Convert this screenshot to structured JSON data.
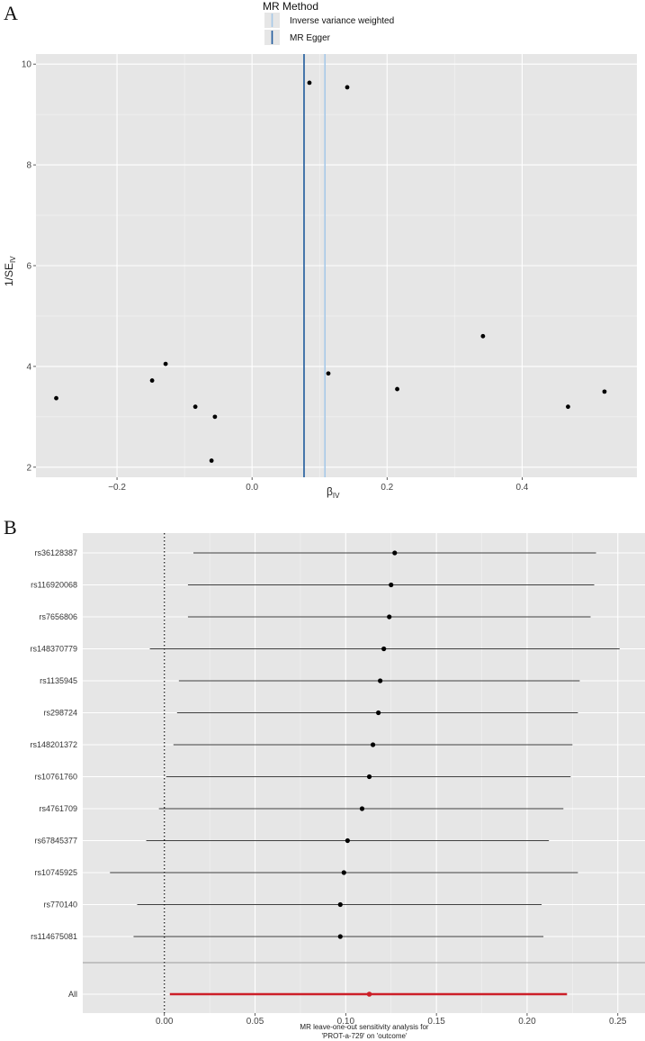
{
  "panel_a": {
    "letter": "A",
    "legend": {
      "title": "MR Method",
      "items": [
        {
          "label": "Inverse variance weighted",
          "color": "#a6c8e8"
        },
        {
          "label": "MR Egger",
          "color": "#1f5a9c"
        }
      ]
    },
    "chart_data": {
      "type": "scatter",
      "xlabel_base": "β",
      "xlabel_sub": "IV",
      "ylabel_base": "1/SE",
      "ylabel_sub": "IV",
      "xlim": [
        -0.32,
        0.57
      ],
      "ylim": [
        1.8,
        10.2
      ],
      "x_ticks": [
        -0.2,
        0.0,
        0.2,
        0.4
      ],
      "x_tick_labels": [
        "−0.2",
        "0.0",
        "0.2",
        "0.4"
      ],
      "y_ticks": [
        2,
        4,
        6,
        8,
        10
      ],
      "y_tick_labels": [
        "2",
        "4",
        "6",
        "8",
        "10"
      ],
      "points": [
        {
          "x": -0.29,
          "y": 3.37
        },
        {
          "x": -0.148,
          "y": 3.72
        },
        {
          "x": -0.128,
          "y": 4.05
        },
        {
          "x": -0.084,
          "y": 3.2
        },
        {
          "x": -0.06,
          "y": 2.13
        },
        {
          "x": -0.055,
          "y": 3.0
        },
        {
          "x": 0.085,
          "y": 9.63
        },
        {
          "x": 0.141,
          "y": 9.54
        },
        {
          "x": 0.113,
          "y": 3.86
        },
        {
          "x": 0.215,
          "y": 3.55
        },
        {
          "x": 0.342,
          "y": 4.6
        },
        {
          "x": 0.468,
          "y": 3.2
        },
        {
          "x": 0.522,
          "y": 3.5
        }
      ],
      "vlines": [
        {
          "method": "MR Egger",
          "x": 0.077,
          "color": "#1f5a9c"
        },
        {
          "method": "Inverse variance weighted",
          "x": 0.108,
          "color": "#a6c8e8"
        }
      ]
    }
  },
  "panel_b": {
    "letter": "B",
    "chart_data": {
      "type": "forest",
      "xlim": [
        -0.045,
        0.265
      ],
      "x_ticks": [
        0.0,
        0.05,
        0.1,
        0.15,
        0.2,
        0.25
      ],
      "x_tick_labels": [
        "0.00",
        "0.05",
        "0.10",
        "0.15",
        "0.20",
        "0.25"
      ],
      "xlabel_line1": "MR leave-one-out sensitivity analysis for",
      "xlabel_line2": "'PROT-a-729' on 'outcome'",
      "reference_line": 0,
      "rows": [
        {
          "snp": "rs36128387",
          "b": 0.127,
          "lo": 0.016,
          "hi": 0.238
        },
        {
          "snp": "rs116920068",
          "b": 0.125,
          "lo": 0.013,
          "hi": 0.237
        },
        {
          "snp": "rs7656806",
          "b": 0.124,
          "lo": 0.013,
          "hi": 0.235
        },
        {
          "snp": "rs148370779",
          "b": 0.121,
          "lo": -0.008,
          "hi": 0.251
        },
        {
          "snp": "rs1135945",
          "b": 0.119,
          "lo": 0.008,
          "hi": 0.229
        },
        {
          "snp": "rs298724",
          "b": 0.118,
          "lo": 0.007,
          "hi": 0.228
        },
        {
          "snp": "rs148201372",
          "b": 0.115,
          "lo": 0.005,
          "hi": 0.225
        },
        {
          "snp": "rs10761760",
          "b": 0.113,
          "lo": 0.001,
          "hi": 0.224
        },
        {
          "snp": "rs4761709",
          "b": 0.109,
          "lo": -0.003,
          "hi": 0.22
        },
        {
          "snp": "rs67845377",
          "b": 0.101,
          "lo": -0.01,
          "hi": 0.212
        },
        {
          "snp": "rs10745925",
          "b": 0.099,
          "lo": -0.03,
          "hi": 0.228
        },
        {
          "snp": "rs770140",
          "b": 0.097,
          "lo": -0.015,
          "hi": 0.208
        },
        {
          "snp": "rs114675081",
          "b": 0.097,
          "lo": -0.017,
          "hi": 0.209
        }
      ],
      "overall": {
        "snp": "All",
        "b": 0.113,
        "lo": 0.003,
        "hi": 0.222,
        "color": "#cc1f28"
      }
    }
  }
}
